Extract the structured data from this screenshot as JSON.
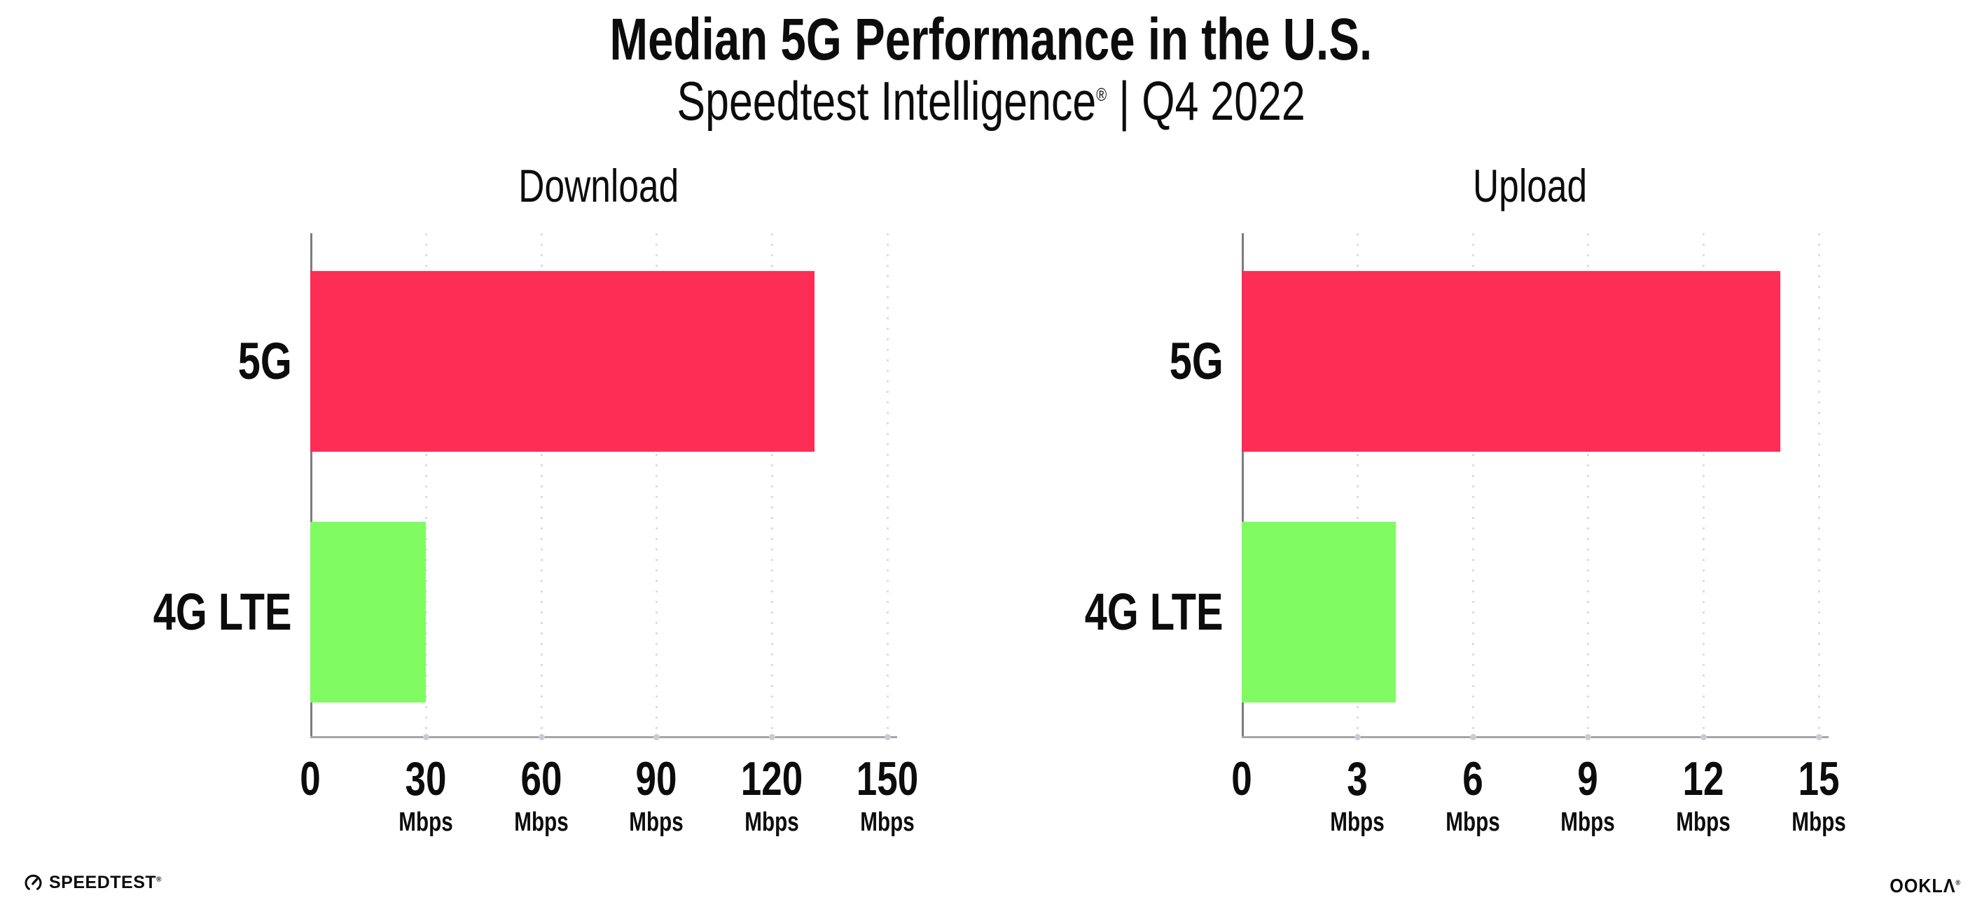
{
  "header": {
    "title": "Median 5G Performance in the U.S.",
    "subtitle_brand": "Speedtest Intelligence",
    "registered_mark": "®",
    "subtitle_separator": "|",
    "subtitle_period": "Q4 2022"
  },
  "chart_data": [
    {
      "type": "bar",
      "orientation": "horizontal",
      "title": "Download",
      "categories": [
        "5G",
        "4G LTE"
      ],
      "values": [
        131,
        30
      ],
      "unit": "Mbps",
      "xlim": [
        0,
        150
      ],
      "xticks": [
        0,
        30,
        60,
        90,
        120,
        150
      ],
      "bar_colors": [
        "#fd2d55",
        "#80fb62"
      ],
      "grid": "dotted-vertical",
      "legend": "none"
    },
    {
      "type": "bar",
      "orientation": "horizontal",
      "title": "Upload",
      "categories": [
        "5G",
        "4G LTE"
      ],
      "values": [
        14,
        4
      ],
      "unit": "Mbps",
      "xlim": [
        0,
        15
      ],
      "xticks": [
        0,
        3,
        6,
        9,
        12,
        15
      ],
      "bar_colors": [
        "#fd2d55",
        "#80fb62"
      ],
      "grid": "dotted-vertical",
      "legend": "none"
    }
  ],
  "footer": {
    "speedtest_label": "SPEEDTEST",
    "speedtest_reg": "®",
    "ookla_label": "OOKLΛ",
    "ookla_reg": "®"
  },
  "colors": {
    "bar_5g": "#fd2d55",
    "bar_4g_lte": "#80fb62",
    "gridline": "#dcdce6",
    "axis_y": "#7d7d7d",
    "axis_x": "#a6a6a6",
    "text": "#0c0c0c",
    "background": "#ffffff"
  }
}
